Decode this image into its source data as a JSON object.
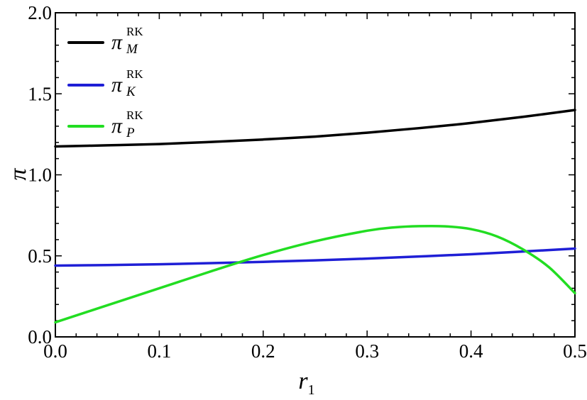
{
  "chart_data": {
    "type": "line",
    "title": "",
    "xlabel": "r",
    "xlabel_sub": "1",
    "ylabel": "π",
    "xlim": [
      0.0,
      0.5
    ],
    "ylim": [
      0.0,
      2.0
    ],
    "x_ticks": [
      "0.0",
      "0.1",
      "0.2",
      "0.3",
      "0.4",
      "0.5"
    ],
    "y_ticks": [
      "0.0",
      "0.5",
      "1.0",
      "1.5",
      "2.0"
    ],
    "grid": false,
    "legend_position": "top-left",
    "series": [
      {
        "name": "π",
        "name_sup": "RK",
        "name_sub": "M",
        "color": "#000000",
        "x": [
          0.0,
          0.05,
          0.1,
          0.15,
          0.2,
          0.25,
          0.3,
          0.35,
          0.4,
          0.45,
          0.5
        ],
        "values": [
          1.175,
          1.182,
          1.19,
          1.203,
          1.218,
          1.236,
          1.26,
          1.288,
          1.32,
          1.358,
          1.4
        ]
      },
      {
        "name": "π",
        "name_sup": "RK",
        "name_sub": "K",
        "color": "#1f1fd6",
        "x": [
          0.0,
          0.05,
          0.1,
          0.15,
          0.2,
          0.25,
          0.3,
          0.35,
          0.4,
          0.45,
          0.5
        ],
        "values": [
          0.44,
          0.443,
          0.448,
          0.455,
          0.463,
          0.472,
          0.483,
          0.496,
          0.51,
          0.527,
          0.545
        ]
      },
      {
        "name": "π",
        "name_sup": "RK",
        "name_sub": "P",
        "color": "#22dd22",
        "x": [
          0.0,
          0.05,
          0.1,
          0.15,
          0.2,
          0.25,
          0.3,
          0.325,
          0.35,
          0.375,
          0.4,
          0.425,
          0.45,
          0.475,
          0.5
        ],
        "values": [
          0.09,
          0.195,
          0.3,
          0.405,
          0.505,
          0.59,
          0.655,
          0.675,
          0.683,
          0.682,
          0.665,
          0.62,
          0.54,
          0.43,
          0.27
        ]
      }
    ]
  }
}
